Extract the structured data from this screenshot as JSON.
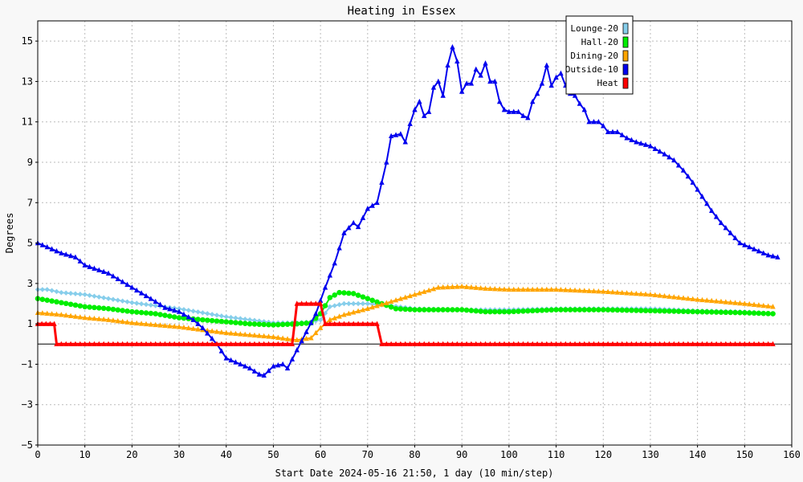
{
  "chart_data": {
    "type": "line",
    "title": "Heating in Essex",
    "xlabel": "Start Date 2024-05-16 21:50, 1 day (10 min/step)",
    "ylabel": "Degrees",
    "xlim": [
      0,
      160
    ],
    "ylim": [
      -5,
      16
    ],
    "x_ticks": [
      0,
      10,
      20,
      30,
      40,
      50,
      60,
      70,
      80,
      90,
      100,
      110,
      120,
      130,
      140,
      150,
      160
    ],
    "y_ticks": [
      -5,
      -3,
      -1,
      1,
      3,
      5,
      7,
      9,
      11,
      13,
      15
    ],
    "grid": true,
    "legend_position": "top-right",
    "series": [
      {
        "name": "Lounge-20",
        "color": "#87ceeb",
        "marker": "diamond",
        "points": [
          [
            0,
            2.7
          ],
          [
            2,
            2.7
          ],
          [
            5,
            2.55
          ],
          [
            10,
            2.45
          ],
          [
            15,
            2.25
          ],
          [
            20,
            2.05
          ],
          [
            25,
            1.9
          ],
          [
            30,
            1.75
          ],
          [
            35,
            1.55
          ],
          [
            40,
            1.35
          ],
          [
            45,
            1.2
          ],
          [
            50,
            1.05
          ],
          [
            55,
            1.05
          ],
          [
            58,
            1.1
          ],
          [
            60,
            1.2
          ],
          [
            62,
            1.85
          ],
          [
            65,
            2.0
          ],
          [
            70,
            2.0
          ],
          [
            75,
            1.9
          ],
          [
            80,
            1.75
          ],
          [
            90,
            1.7
          ],
          [
            100,
            1.7
          ],
          [
            110,
            1.75
          ],
          [
            120,
            1.75
          ],
          [
            130,
            1.75
          ],
          [
            140,
            1.65
          ],
          [
            150,
            1.6
          ],
          [
            156,
            1.5
          ]
        ]
      },
      {
        "name": "Hall-20",
        "color": "#00ee00",
        "marker": "circle",
        "points": [
          [
            0,
            2.25
          ],
          [
            5,
            2.05
          ],
          [
            10,
            1.85
          ],
          [
            15,
            1.75
          ],
          [
            20,
            1.6
          ],
          [
            25,
            1.5
          ],
          [
            30,
            1.3
          ],
          [
            35,
            1.2
          ],
          [
            40,
            1.1
          ],
          [
            45,
            1.0
          ],
          [
            50,
            0.95
          ],
          [
            55,
            1.0
          ],
          [
            58,
            1.05
          ],
          [
            60,
            1.5
          ],
          [
            62,
            2.3
          ],
          [
            64,
            2.55
          ],
          [
            67,
            2.5
          ],
          [
            70,
            2.25
          ],
          [
            73,
            2.0
          ],
          [
            76,
            1.75
          ],
          [
            80,
            1.7
          ],
          [
            90,
            1.7
          ],
          [
            95,
            1.6
          ],
          [
            100,
            1.6
          ],
          [
            105,
            1.65
          ],
          [
            110,
            1.7
          ],
          [
            120,
            1.7
          ],
          [
            130,
            1.65
          ],
          [
            140,
            1.6
          ],
          [
            150,
            1.55
          ],
          [
            156,
            1.5
          ]
        ]
      },
      {
        "name": "Dining-20",
        "color": "#ffa500",
        "marker": "triangle",
        "points": [
          [
            0,
            1.55
          ],
          [
            5,
            1.45
          ],
          [
            10,
            1.3
          ],
          [
            15,
            1.2
          ],
          [
            20,
            1.05
          ],
          [
            25,
            0.95
          ],
          [
            30,
            0.85
          ],
          [
            35,
            0.7
          ],
          [
            40,
            0.55
          ],
          [
            45,
            0.45
          ],
          [
            50,
            0.35
          ],
          [
            53,
            0.25
          ],
          [
            55,
            0.2
          ],
          [
            58,
            0.3
          ],
          [
            60,
            0.8
          ],
          [
            62,
            1.2
          ],
          [
            65,
            1.45
          ],
          [
            70,
            1.75
          ],
          [
            75,
            2.1
          ],
          [
            80,
            2.45
          ],
          [
            85,
            2.8
          ],
          [
            90,
            2.85
          ],
          [
            95,
            2.75
          ],
          [
            100,
            2.7
          ],
          [
            110,
            2.7
          ],
          [
            120,
            2.6
          ],
          [
            130,
            2.45
          ],
          [
            140,
            2.2
          ],
          [
            150,
            2.0
          ],
          [
            156,
            1.85
          ]
        ]
      },
      {
        "name": "Outside-10",
        "color": "#0000ee",
        "marker": "triangle",
        "points": [
          [
            0,
            5.0
          ],
          [
            3,
            4.7
          ],
          [
            5,
            4.5
          ],
          [
            8,
            4.3
          ],
          [
            10,
            3.9
          ],
          [
            15,
            3.5
          ],
          [
            20,
            2.8
          ],
          [
            25,
            2.1
          ],
          [
            27,
            1.8
          ],
          [
            30,
            1.6
          ],
          [
            33,
            1.2
          ],
          [
            35,
            0.8
          ],
          [
            38,
            0.0
          ],
          [
            40,
            -0.7
          ],
          [
            42,
            -0.9
          ],
          [
            45,
            -1.2
          ],
          [
            47,
            -1.5
          ],
          [
            48,
            -1.55
          ],
          [
            50,
            -1.1
          ],
          [
            52,
            -1.0
          ],
          [
            53,
            -1.2
          ],
          [
            55,
            -0.3
          ],
          [
            57,
            0.6
          ],
          [
            59,
            1.5
          ],
          [
            61,
            2.8
          ],
          [
            63,
            4.0
          ],
          [
            65,
            5.5
          ],
          [
            67,
            6.0
          ],
          [
            68,
            5.8
          ],
          [
            70,
            6.7
          ],
          [
            72,
            7.0
          ],
          [
            73,
            8.0
          ],
          [
            74,
            9.0
          ],
          [
            75,
            10.3
          ],
          [
            77,
            10.4
          ],
          [
            78,
            10.0
          ],
          [
            79,
            10.9
          ],
          [
            80,
            11.6
          ],
          [
            81,
            12.0
          ],
          [
            82,
            11.3
          ],
          [
            83,
            11.5
          ],
          [
            84,
            12.7
          ],
          [
            85,
            13.0
          ],
          [
            86,
            12.3
          ],
          [
            87,
            13.8
          ],
          [
            88,
            14.7
          ],
          [
            89,
            14.0
          ],
          [
            90,
            12.5
          ],
          [
            91,
            12.9
          ],
          [
            92,
            12.9
          ],
          [
            93,
            13.6
          ],
          [
            94,
            13.3
          ],
          [
            95,
            13.9
          ],
          [
            96,
            13.0
          ],
          [
            97,
            13.0
          ],
          [
            98,
            12.0
          ],
          [
            99,
            11.6
          ],
          [
            100,
            11.5
          ],
          [
            101,
            11.5
          ],
          [
            102,
            11.5
          ],
          [
            103,
            11.3
          ],
          [
            104,
            11.2
          ],
          [
            105,
            12.0
          ],
          [
            106,
            12.4
          ],
          [
            107,
            12.9
          ],
          [
            108,
            13.8
          ],
          [
            109,
            12.8
          ],
          [
            110,
            13.2
          ],
          [
            111,
            13.4
          ],
          [
            112,
            12.8
          ],
          [
            113,
            12.4
          ],
          [
            114,
            12.3
          ],
          [
            115,
            11.9
          ],
          [
            116,
            11.6
          ],
          [
            117,
            11.0
          ],
          [
            118,
            11.0
          ],
          [
            119,
            11.0
          ],
          [
            120,
            10.8
          ],
          [
            121,
            10.5
          ],
          [
            123,
            10.5
          ],
          [
            125,
            10.2
          ],
          [
            127,
            10.0
          ],
          [
            130,
            9.8
          ],
          [
            133,
            9.4
          ],
          [
            135,
            9.1
          ],
          [
            137,
            8.6
          ],
          [
            139,
            8.0
          ],
          [
            141,
            7.3
          ],
          [
            143,
            6.6
          ],
          [
            145,
            6.0
          ],
          [
            147,
            5.5
          ],
          [
            149,
            5.0
          ],
          [
            151,
            4.8
          ],
          [
            153,
            4.6
          ],
          [
            155,
            4.4
          ],
          [
            157,
            4.3
          ]
        ]
      },
      {
        "name": "Heat",
        "color": "#ff0000",
        "marker": "triangle",
        "points": [
          [
            0,
            1.0
          ],
          [
            3.5,
            1.0
          ],
          [
            4,
            0.0
          ],
          [
            54,
            0.0
          ],
          [
            55,
            2.0
          ],
          [
            60,
            2.0
          ],
          [
            61,
            1.0
          ],
          [
            72,
            1.0
          ],
          [
            73,
            0.0
          ],
          [
            156,
            0.0
          ]
        ]
      }
    ]
  }
}
